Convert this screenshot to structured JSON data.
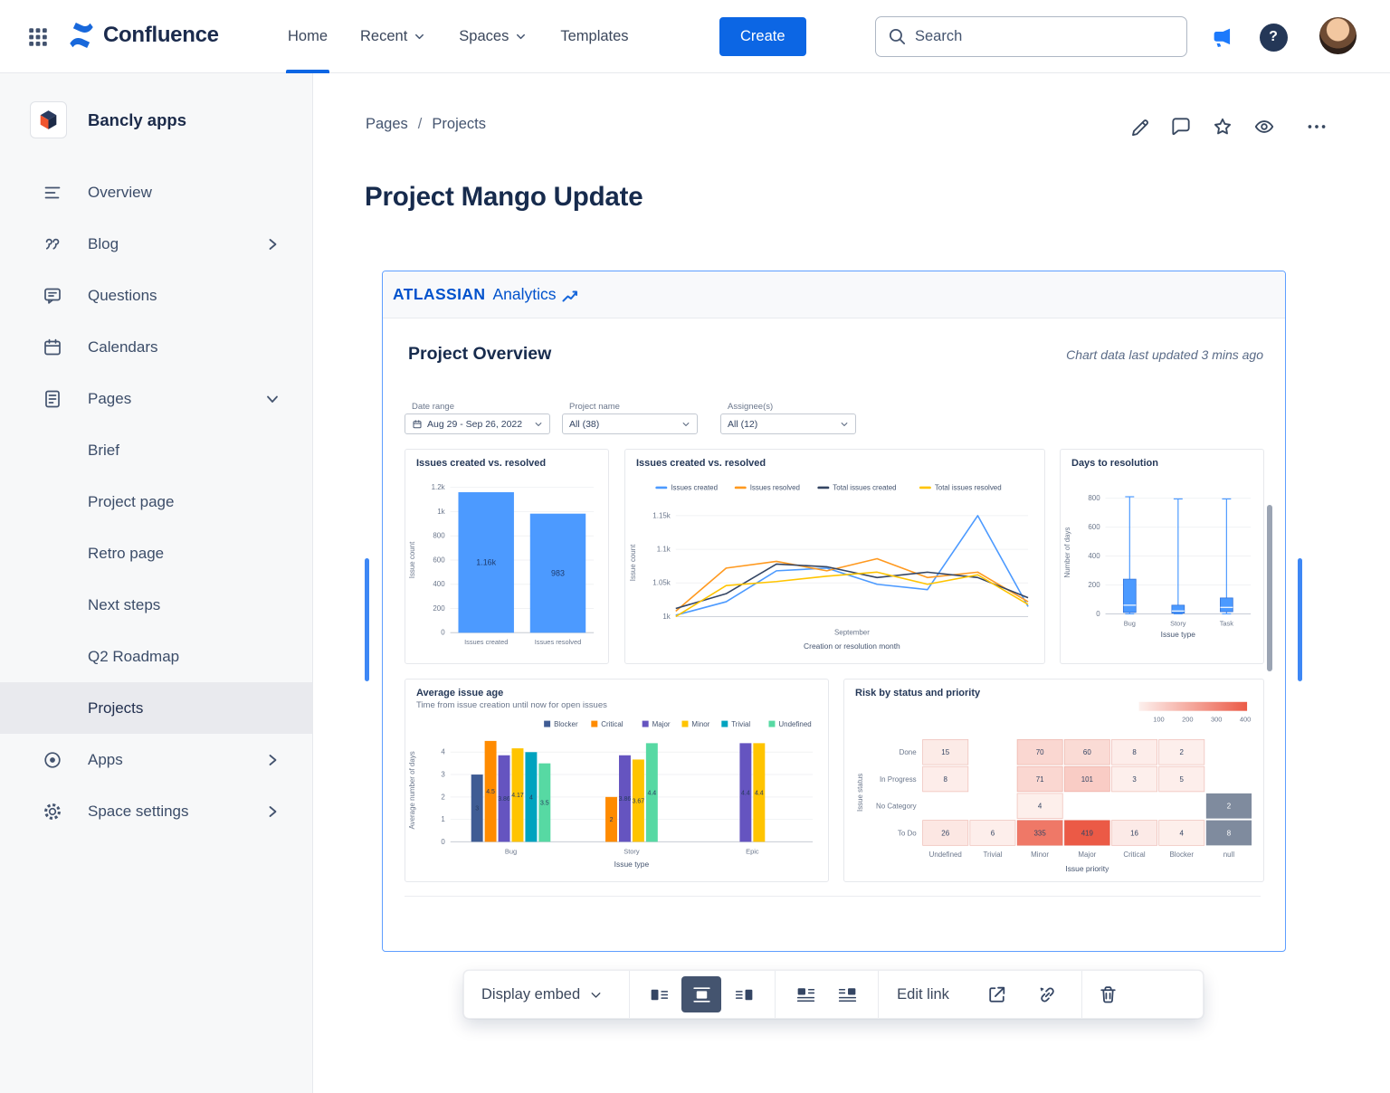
{
  "topnav": {
    "product": "Confluence",
    "items": [
      {
        "label": "Home"
      },
      {
        "label": "Recent"
      },
      {
        "label": "Spaces"
      },
      {
        "label": "Templates"
      }
    ],
    "create_label": "Create",
    "search_placeholder": "Search",
    "help_glyph": "?"
  },
  "sidebar": {
    "space_name": "Bancly apps",
    "items": [
      {
        "label": "Overview"
      },
      {
        "label": "Blog"
      },
      {
        "label": "Questions"
      },
      {
        "label": "Calendars"
      },
      {
        "label": "Pages"
      }
    ],
    "page_children": [
      {
        "label": "Brief"
      },
      {
        "label": "Project page"
      },
      {
        "label": "Retro page"
      },
      {
        "label": "Next steps"
      },
      {
        "label": "Q2 Roadmap"
      },
      {
        "label": "Projects"
      }
    ],
    "footer_items": [
      {
        "label": "Apps"
      },
      {
        "label": "Space settings"
      }
    ],
    "selected_page": "Projects"
  },
  "content": {
    "breadcrumb": {
      "items": [
        "Pages",
        "Projects"
      ],
      "separator": "/"
    },
    "title": "Project Mango Update"
  },
  "embed": {
    "brand": "ATLASSIAN",
    "product": "Analytics",
    "heading": "Project Overview",
    "updated_text": "Chart data last updated 3 mins ago",
    "filters": [
      {
        "label": "Date range",
        "value": "Aug 29 - Sep 26, 2022"
      },
      {
        "label": "Project name",
        "value": "All (38)"
      },
      {
        "label": "Assignee(s)",
        "value": "All (12)"
      }
    ]
  },
  "toolbar": {
    "display_label": "Display embed",
    "edit_link_label": "Edit link"
  },
  "colors": {
    "brand_blue": "#0C66E4",
    "embed_border": "#5E9EFF",
    "chart_blue": "#4C9AFF",
    "heatmap_low": "#FDF0ED",
    "heatmap_high": "#EB5A46"
  },
  "chart_data": [
    {
      "type": "bar",
      "title": "Issues created vs. resolved",
      "categories": [
        "Issues created",
        "Issues resolved"
      ],
      "values": [
        1160,
        983
      ],
      "value_labels": [
        "1.16k",
        "983"
      ],
      "ylabel": "Issue count",
      "xlabel": "",
      "ylim": [
        0,
        1200
      ],
      "yticks": [
        {
          "v": 0,
          "label": "0"
        },
        {
          "v": 200,
          "label": "200"
        },
        {
          "v": 400,
          "label": "400"
        },
        {
          "v": 600,
          "label": "600"
        },
        {
          "v": 800,
          "label": "800"
        },
        {
          "v": 1000,
          "label": "1k"
        },
        {
          "v": 1200,
          "label": "1.2k"
        }
      ],
      "bar_color": "#4C9AFF"
    },
    {
      "type": "line",
      "title": "Issues created vs. resolved",
      "xlabel": "Creation or resolution month",
      "ylabel": "Issue count",
      "xticks": [
        "September"
      ],
      "ylim": [
        1000,
        1160
      ],
      "yticks": [
        {
          "v": 1000,
          "label": "1k"
        },
        {
          "v": 1050,
          "label": "1.05k"
        },
        {
          "v": 1100,
          "label": "1.1k"
        },
        {
          "v": 1150,
          "label": "1.15k"
        }
      ],
      "series": [
        {
          "name": "Issues created",
          "color": "#4C9AFF",
          "values": [
            1002,
            1022,
            1068,
            1072,
            1048,
            1040,
            1150,
            1015
          ]
        },
        {
          "name": "Issues resolved",
          "color": "#FF991F",
          "values": [
            1008,
            1072,
            1082,
            1068,
            1086,
            1058,
            1066,
            1022
          ]
        },
        {
          "name": "Total issues created",
          "color": "#344563",
          "values": [
            1012,
            1034,
            1078,
            1074,
            1058,
            1066,
            1058,
            1028
          ]
        },
        {
          "name": "Total issues resolved",
          "color": "#FFC400",
          "values": [
            1000,
            1046,
            1052,
            1060,
            1066,
            1048,
            1062,
            1018
          ]
        }
      ]
    },
    {
      "type": "boxplot",
      "title": "Days to resolution",
      "xlabel": "Issue type",
      "ylabel": "Number of days",
      "ylim": [
        0,
        850
      ],
      "yticks": [
        {
          "v": 0,
          "label": "0"
        },
        {
          "v": 200,
          "label": "200"
        },
        {
          "v": 400,
          "label": "400"
        },
        {
          "v": 600,
          "label": "600"
        },
        {
          "v": 800,
          "label": "800"
        }
      ],
      "color": "#4C9AFF",
      "items": [
        {
          "label": "Bug",
          "min": 0,
          "q1": 10,
          "median": 60,
          "q3": 240,
          "max": 810
        },
        {
          "label": "Story",
          "min": 0,
          "q1": 5,
          "median": 20,
          "q3": 60,
          "max": 795
        },
        {
          "label": "Task",
          "min": 0,
          "q1": 15,
          "median": 45,
          "q3": 110,
          "max": 795
        }
      ]
    },
    {
      "type": "bar",
      "grouped": true,
      "title": "Average issue age",
      "subtitle": "Time from issue creation until now for open issues",
      "xlabel": "Issue type",
      "ylabel": "Average number of days",
      "ylim": [
        0,
        4.6
      ],
      "yticks": [
        0,
        1,
        2,
        3,
        4
      ],
      "legend": [
        {
          "name": "Blocker",
          "color": "#3F5C94"
        },
        {
          "name": "Critical",
          "color": "#FF8B00"
        },
        {
          "name": "Major",
          "color": "#6554C0"
        },
        {
          "name": "Minor",
          "color": "#FFC400"
        },
        {
          "name": "Trivial",
          "color": "#00A3BF"
        },
        {
          "name": "Undefined",
          "color": "#57D9A3"
        }
      ],
      "groups": [
        {
          "label": "Bug",
          "bars": [
            {
              "series": "Blocker",
              "value": 3,
              "display": "3"
            },
            {
              "series": "Critical",
              "value": 4.5,
              "display": "4.5"
            },
            {
              "series": "Major",
              "value": 3.86,
              "display": "3.86"
            },
            {
              "series": "Minor",
              "value": 4.17,
              "display": "4.17"
            },
            {
              "series": "Trivial",
              "value": 4,
              "display": "4"
            },
            {
              "series": "Undefined",
              "value": 3.5,
              "display": "3.5"
            }
          ]
        },
        {
          "label": "Story",
          "bars": [
            {
              "series": "Critical",
              "value": 2,
              "display": "2"
            },
            {
              "series": "Major",
              "value": 3.86,
              "display": "3.86"
            },
            {
              "series": "Minor",
              "value": 3.67,
              "display": "3.67"
            },
            {
              "series": "Undefined",
              "value": 4.4,
              "display": "4.4"
            }
          ]
        },
        {
          "label": "Epic",
          "bars": [
            {
              "series": "Major",
              "value": 4.4,
              "display": "4.4"
            },
            {
              "series": "Minor",
              "value": 4.4,
              "display": "4.4"
            }
          ]
        }
      ]
    },
    {
      "type": "heatmap",
      "title": "Risk by status and priority",
      "xlabel": "Issue priority",
      "ylabel": "Issue status",
      "columns": [
        "Undefined",
        "Trivial",
        "Minor",
        "Major",
        "Critical",
        "Blocker",
        "null"
      ],
      "rows": [
        "Done",
        "In Progress",
        "No Category",
        "To Do"
      ],
      "values": [
        [
          15,
          null,
          70,
          60,
          8,
          2,
          null
        ],
        [
          8,
          null,
          71,
          101,
          3,
          5,
          null
        ],
        [
          null,
          null,
          4,
          null,
          null,
          null,
          2
        ],
        [
          26,
          6,
          335,
          419,
          16,
          4,
          8
        ]
      ],
      "scale": {
        "min": 0,
        "max": 419,
        "labels": [
          "100",
          "200",
          "300",
          "400"
        ],
        "low_color": "#FDF0ED",
        "high_color": "#EB5A46",
        "null_color": "#7F8B9E"
      }
    }
  ]
}
